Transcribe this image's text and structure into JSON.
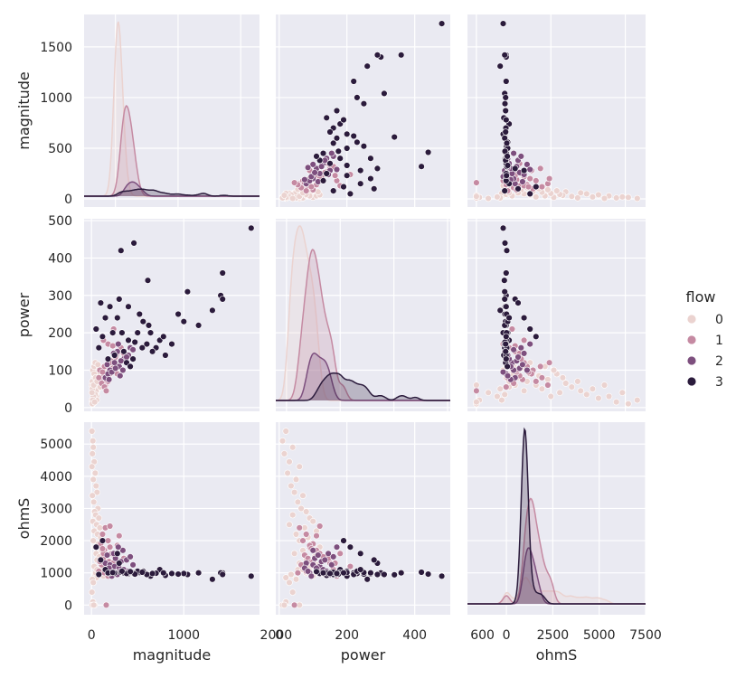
{
  "chart_data": {
    "type": "pairplot",
    "variables": [
      "magnitude",
      "power",
      "ohmS"
    ],
    "hue": "flow",
    "legend": {
      "title": "flow",
      "placement": "right",
      "entries": [
        {
          "label": "0",
          "color": "#ebd3d0"
        },
        {
          "label": "1",
          "color": "#c58aa2"
        },
        {
          "label": "2",
          "color": "#7d4f7e"
        },
        {
          "label": "3",
          "color": "#2b1b3c"
        }
      ]
    },
    "axes": {
      "magnitude": {
        "label": "magnitude",
        "range": [
          -500,
          2300
        ],
        "scatter_range": [
          -80,
          1820
        ],
        "ticks": [
          0,
          1000,
          2000
        ],
        "scatter_ticks": [
          0,
          500,
          1000,
          1500
        ]
      },
      "power": {
        "label": "power",
        "range": [
          -40,
          610
        ],
        "scatter_range": [
          -10,
          505
        ],
        "ticks": [
          0,
          200,
          400,
          600
        ],
        "scatter_ticks": [
          0,
          100,
          200,
          300,
          400,
          500
        ]
      },
      "ohmS": {
        "label": "ohmS",
        "range": [
          -2100,
          7500
        ],
        "scatter_range": [
          -300,
          5680
        ],
        "ticks": [
          0,
          2500,
          5000,
          7500
        ],
        "scatter_ticks": [
          0,
          1000,
          2000,
          3000,
          4000,
          5000
        ]
      }
    },
    "grid": true,
    "background": "#eaeaf2",
    "series": [
      {
        "name": "0",
        "color": "#ebd3d0",
        "points": [
          {
            "magnitude": 5,
            "power": 20,
            "ohmS": 5400
          },
          {
            "magnitude": 15,
            "power": 10,
            "ohmS": 5100
          },
          {
            "magnitude": 20,
            "power": 40,
            "ohmS": 4900
          },
          {
            "magnitude": 10,
            "power": 15,
            "ohmS": 4700
          },
          {
            "magnitude": 30,
            "power": 30,
            "ohmS": 4450
          },
          {
            "magnitude": 5,
            "power": 60,
            "ohmS": 4300
          },
          {
            "magnitude": 40,
            "power": 25,
            "ohmS": 4100
          },
          {
            "magnitude": 20,
            "power": 50,
            "ohmS": 3900
          },
          {
            "magnitude": 50,
            "power": 35,
            "ohmS": 3700
          },
          {
            "magnitude": 60,
            "power": 45,
            "ohmS": 3500
          },
          {
            "magnitude": 10,
            "power": 70,
            "ohmS": 3400
          },
          {
            "magnitude": 25,
            "power": 55,
            "ohmS": 3200
          },
          {
            "magnitude": 70,
            "power": 65,
            "ohmS": 3000
          },
          {
            "magnitude": 35,
            "power": 80,
            "ohmS": 2900
          },
          {
            "magnitude": 45,
            "power": 40,
            "ohmS": 2800
          },
          {
            "magnitude": 80,
            "power": 90,
            "ohmS": 2700
          },
          {
            "magnitude": 15,
            "power": 100,
            "ohmS": 2600
          },
          {
            "magnitude": 55,
            "power": 30,
            "ohmS": 2500
          },
          {
            "magnitude": 90,
            "power": 75,
            "ohmS": 2400
          },
          {
            "magnitude": 30,
            "power": 110,
            "ohmS": 2300
          },
          {
            "magnitude": 65,
            "power": 50,
            "ohmS": 2200
          },
          {
            "magnitude": 100,
            "power": 85,
            "ohmS": 2100
          },
          {
            "magnitude": 20,
            "power": 60,
            "ohmS": 2000
          },
          {
            "magnitude": 75,
            "power": 95,
            "ohmS": 1900
          },
          {
            "magnitude": 40,
            "power": 120,
            "ohmS": 1800
          },
          {
            "magnitude": 110,
            "power": 70,
            "ohmS": 1700
          },
          {
            "magnitude": 50,
            "power": 45,
            "ohmS": 1600
          },
          {
            "magnitude": 85,
            "power": 105,
            "ohmS": 1500
          },
          {
            "magnitude": 60,
            "power": 80,
            "ohmS": 1400
          },
          {
            "magnitude": 120,
            "power": 60,
            "ohmS": 1300
          },
          {
            "magnitude": 30,
            "power": 90,
            "ohmS": 1200
          },
          {
            "magnitude": 95,
            "power": 55,
            "ohmS": 1100
          },
          {
            "magnitude": 70,
            "power": 115,
            "ohmS": 1000
          },
          {
            "magnitude": 40,
            "power": 35,
            "ohmS": 950
          },
          {
            "magnitude": 130,
            "power": 100,
            "ohmS": 900
          },
          {
            "magnitude": 55,
            "power": 20,
            "ohmS": 850
          },
          {
            "magnitude": 10,
            "power": 50,
            "ohmS": 800
          },
          {
            "magnitude": 20,
            "power": 30,
            "ohmS": 700
          },
          {
            "magnitude": 5,
            "power": 40,
            "ohmS": 400
          },
          {
            "magnitude": 15,
            "power": 20,
            "ohmS": 100
          },
          {
            "magnitude": 10,
            "power": 10,
            "ohmS": 0
          },
          {
            "magnitude": 35,
            "power": 15,
            "ohmS": 0
          },
          {
            "magnitude": 25,
            "power": 60,
            "ohmS": 0
          },
          {
            "magnitude": 45,
            "power": 80,
            "ohmS": 1000
          },
          {
            "magnitude": 60,
            "power": 70,
            "ohmS": 1100
          },
          {
            "magnitude": 140,
            "power": 110,
            "ohmS": 1250
          },
          {
            "magnitude": 150,
            "power": 90,
            "ohmS": 1050
          }
        ]
      },
      {
        "name": "1",
        "color": "#c58aa2",
        "points": [
          {
            "magnitude": 150,
            "power": 60,
            "ohmS": 2400
          },
          {
            "magnitude": 120,
            "power": 80,
            "ohmS": 2200
          },
          {
            "magnitude": 180,
            "power": 70,
            "ohmS": 2000
          },
          {
            "magnitude": 100,
            "power": 100,
            "ohmS": 1900
          },
          {
            "magnitude": 200,
            "power": 90,
            "ohmS": 1800
          },
          {
            "magnitude": 140,
            "power": 110,
            "ohmS": 1700
          },
          {
            "magnitude": 220,
            "power": 120,
            "ohmS": 1600
          },
          {
            "magnitude": 160,
            "power": 75,
            "ohmS": 1550
          },
          {
            "magnitude": 250,
            "power": 130,
            "ohmS": 1500
          },
          {
            "magnitude": 130,
            "power": 85,
            "ohmS": 1450
          },
          {
            "magnitude": 270,
            "power": 140,
            "ohmS": 1400
          },
          {
            "magnitude": 190,
            "power": 95,
            "ohmS": 1350
          },
          {
            "magnitude": 300,
            "power": 150,
            "ohmS": 1300
          },
          {
            "magnitude": 110,
            "power": 65,
            "ohmS": 1250
          },
          {
            "magnitude": 230,
            "power": 105,
            "ohmS": 1200
          },
          {
            "magnitude": 170,
            "power": 115,
            "ohmS": 1150
          },
          {
            "magnitude": 320,
            "power": 160,
            "ohmS": 1100
          },
          {
            "magnitude": 210,
            "power": 125,
            "ohmS": 1050
          },
          {
            "magnitude": 140,
            "power": 55,
            "ohmS": 1000
          },
          {
            "magnitude": 260,
            "power": 135,
            "ohmS": 950
          },
          {
            "magnitude": 180,
            "power": 170,
            "ohmS": 900
          },
          {
            "magnitude": 90,
            "power": 100,
            "ohmS": 1350
          },
          {
            "magnitude": 240,
            "power": 210,
            "ohmS": 1200
          },
          {
            "magnitude": 130,
            "power": 180,
            "ohmS": 1600
          },
          {
            "magnitude": 280,
            "power": 90,
            "ohmS": 1850
          },
          {
            "magnitude": 350,
            "power": 145,
            "ohmS": 1450
          },
          {
            "magnitude": 80,
            "power": 80,
            "ohmS": 1050
          },
          {
            "magnitude": 160,
            "power": 45,
            "ohmS": 0
          },
          {
            "magnitude": 200,
            "power": 120,
            "ohmS": 2450
          },
          {
            "magnitude": 300,
            "power": 110,
            "ohmS": 2150
          },
          {
            "magnitude": 120,
            "power": 95,
            "ohmS": 1750
          },
          {
            "magnitude": 230,
            "power": 165,
            "ohmS": 1300
          }
        ]
      },
      {
        "name": "2",
        "color": "#7d4f7e",
        "points": [
          {
            "magnitude": 150,
            "power": 80,
            "ohmS": 1300
          },
          {
            "magnitude": 200,
            "power": 100,
            "ohmS": 1250
          },
          {
            "magnitude": 250,
            "power": 120,
            "ohmS": 1200
          },
          {
            "magnitude": 300,
            "power": 110,
            "ohmS": 1150
          },
          {
            "magnitude": 350,
            "power": 130,
            "ohmS": 1100
          },
          {
            "magnitude": 400,
            "power": 140,
            "ohmS": 1050
          },
          {
            "magnitude": 180,
            "power": 90,
            "ohmS": 1000
          },
          {
            "magnitude": 280,
            "power": 150,
            "ohmS": 950
          },
          {
            "magnitude": 220,
            "power": 95,
            "ohmS": 900
          },
          {
            "magnitude": 320,
            "power": 125,
            "ohmS": 1350
          },
          {
            "magnitude": 380,
            "power": 135,
            "ohmS": 1400
          },
          {
            "magnitude": 260,
            "power": 105,
            "ohmS": 1450
          },
          {
            "magnitude": 420,
            "power": 160,
            "ohmS": 1500
          },
          {
            "magnitude": 170,
            "power": 115,
            "ohmS": 1550
          },
          {
            "magnitude": 240,
            "power": 145,
            "ohmS": 1600
          },
          {
            "magnitude": 340,
            "power": 100,
            "ohmS": 1700
          },
          {
            "magnitude": 290,
            "power": 170,
            "ohmS": 1800
          },
          {
            "magnitude": 450,
            "power": 155,
            "ohmS": 1250
          },
          {
            "magnitude": 190,
            "power": 75,
            "ohmS": 1150
          },
          {
            "magnitude": 310,
            "power": 85,
            "ohmS": 1050
          }
        ]
      },
      {
        "name": "3",
        "color": "#2b1b3c",
        "points": [
          {
            "magnitude": 1730,
            "power": 480,
            "ohmS": 900
          },
          {
            "magnitude": 1420,
            "power": 360,
            "ohmS": 1000
          },
          {
            "magnitude": 1400,
            "power": 300,
            "ohmS": 1000
          },
          {
            "magnitude": 1420,
            "power": 290,
            "ohmS": 950
          },
          {
            "magnitude": 1040,
            "power": 310,
            "ohmS": 950
          },
          {
            "magnitude": 1000,
            "power": 230,
            "ohmS": 980
          },
          {
            "magnitude": 1160,
            "power": 220,
            "ohmS": 1000
          },
          {
            "magnitude": 1310,
            "power": 260,
            "ohmS": 800
          },
          {
            "magnitude": 940,
            "power": 250,
            "ohmS": 960
          },
          {
            "magnitude": 800,
            "power": 140,
            "ohmS": 920
          },
          {
            "magnitude": 620,
            "power": 220,
            "ohmS": 950
          },
          {
            "magnitude": 610,
            "power": 340,
            "ohmS": 940
          },
          {
            "magnitude": 460,
            "power": 440,
            "ohmS": 960
          },
          {
            "magnitude": 320,
            "power": 420,
            "ohmS": 1020
          },
          {
            "magnitude": 640,
            "power": 200,
            "ohmS": 900
          },
          {
            "magnitude": 740,
            "power": 180,
            "ohmS": 1100
          },
          {
            "magnitude": 560,
            "power": 230,
            "ohmS": 1050
          },
          {
            "magnitude": 700,
            "power": 160,
            "ohmS": 990
          },
          {
            "magnitude": 520,
            "power": 250,
            "ohmS": 1010
          },
          {
            "magnitude": 400,
            "power": 270,
            "ohmS": 970
          },
          {
            "magnitude": 300,
            "power": 290,
            "ohmS": 1300
          },
          {
            "magnitude": 280,
            "power": 240,
            "ohmS": 1600
          },
          {
            "magnitude": 100,
            "power": 280,
            "ohmS": 1400
          },
          {
            "magnitude": 200,
            "power": 270,
            "ohmS": 1000
          },
          {
            "magnitude": 150,
            "power": 240,
            "ohmS": 1100
          },
          {
            "magnitude": 50,
            "power": 210,
            "ohmS": 1800
          },
          {
            "magnitude": 120,
            "power": 190,
            "ohmS": 2000
          },
          {
            "magnitude": 80,
            "power": 160,
            "ohmS": 950
          },
          {
            "magnitude": 400,
            "power": 180,
            "ohmS": 1000
          },
          {
            "magnitude": 500,
            "power": 200,
            "ohmS": 1050
          },
          {
            "magnitude": 350,
            "power": 150,
            "ohmS": 1000
          },
          {
            "magnitude": 600,
            "power": 170,
            "ohmS": 950
          },
          {
            "magnitude": 450,
            "power": 130,
            "ohmS": 1000
          },
          {
            "magnitude": 380,
            "power": 120,
            "ohmS": 980
          },
          {
            "magnitude": 550,
            "power": 160,
            "ohmS": 1020
          },
          {
            "magnitude": 250,
            "power": 140,
            "ohmS": 1000
          },
          {
            "magnitude": 470,
            "power": 175,
            "ohmS": 960
          },
          {
            "magnitude": 330,
            "power": 200,
            "ohmS": 1050
          },
          {
            "magnitude": 660,
            "power": 150,
            "ohmS": 980
          },
          {
            "magnitude": 180,
            "power": 130,
            "ohmS": 1000
          },
          {
            "magnitude": 420,
            "power": 110,
            "ohmS": 1040
          },
          {
            "magnitude": 230,
            "power": 200,
            "ohmS": 1010
          },
          {
            "magnitude": 780,
            "power": 190,
            "ohmS": 1000
          },
          {
            "magnitude": 870,
            "power": 170,
            "ohmS": 980
          }
        ]
      }
    ],
    "kde_peaks": {
      "magnitude": {
        "0": 1720,
        "1": 890,
        "2": 140,
        "3": 70
      },
      "power": {
        "0": 480,
        "1": 415,
        "2": 130,
        "3": 75
      },
      "ohmS": {
        "0": 800,
        "1": 3200,
        "2": 1700,
        "3": 5300
      }
    }
  }
}
